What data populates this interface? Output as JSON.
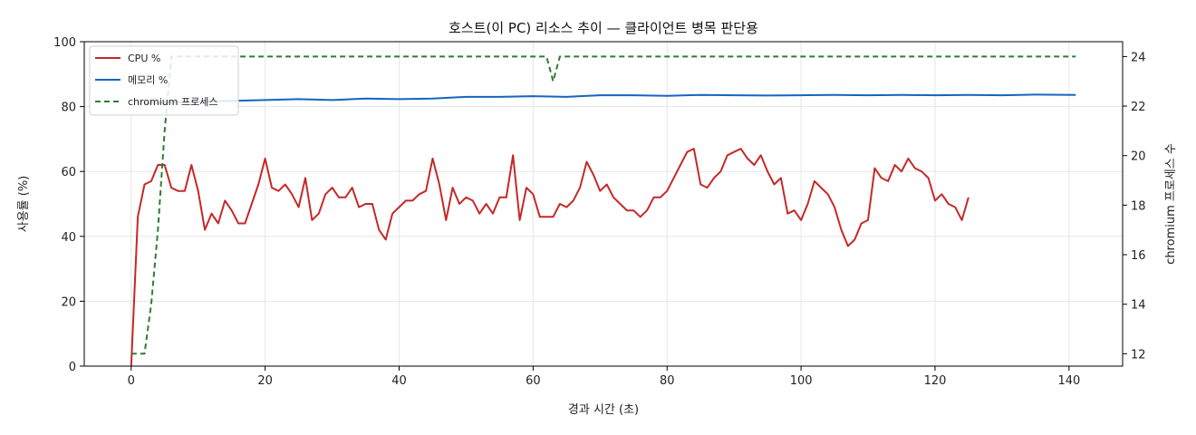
{
  "chart_data": {
    "type": "line",
    "title": "호스트(이 PC) 리소스 추이 — 클라이언트 병목 판단용",
    "xlabel": "경과 시간 (초)",
    "ylabel": "사용률 (%)",
    "y2label": "chromium 프로세스 수",
    "xlim": [
      -7,
      148
    ],
    "ylim": [
      0,
      100
    ],
    "y2lim": [
      11.5,
      24.6
    ],
    "xticks": [
      0,
      20,
      40,
      60,
      80,
      100,
      120,
      140
    ],
    "yticks": [
      0,
      20,
      40,
      60,
      80,
      100
    ],
    "y2ticks": [
      12,
      14,
      16,
      18,
      20,
      22,
      24
    ],
    "grid": true,
    "legend_position": "top-left",
    "series": [
      {
        "name": "CPU %",
        "axis": "left",
        "color": "#c62828",
        "dash": "solid",
        "points": [
          [
            0,
            0
          ],
          [
            1,
            46
          ],
          [
            2,
            56
          ],
          [
            3,
            57
          ],
          [
            4,
            62
          ],
          [
            5,
            62
          ],
          [
            6,
            55
          ],
          [
            7,
            54
          ],
          [
            8,
            54
          ],
          [
            9,
            62
          ],
          [
            10,
            54
          ],
          [
            11,
            42
          ],
          [
            12,
            47
          ],
          [
            13,
            44
          ],
          [
            14,
            51
          ],
          [
            15,
            48
          ],
          [
            16,
            44
          ],
          [
            17,
            44
          ],
          [
            18,
            50
          ],
          [
            19,
            56
          ],
          [
            20,
            64
          ],
          [
            21,
            55
          ],
          [
            22,
            54
          ],
          [
            23,
            56
          ],
          [
            24,
            53
          ],
          [
            25,
            49
          ],
          [
            26,
            58
          ],
          [
            27,
            45
          ],
          [
            28,
            47
          ],
          [
            29,
            53
          ],
          [
            30,
            55
          ],
          [
            31,
            52
          ],
          [
            32,
            52
          ],
          [
            33,
            55
          ],
          [
            34,
            49
          ],
          [
            35,
            50
          ],
          [
            36,
            50
          ],
          [
            37,
            42
          ],
          [
            38,
            39
          ],
          [
            39,
            47
          ],
          [
            40,
            49
          ],
          [
            41,
            51
          ],
          [
            42,
            51
          ],
          [
            43,
            53
          ],
          [
            44,
            54
          ],
          [
            45,
            64
          ],
          [
            46,
            56
          ],
          [
            47,
            45
          ],
          [
            48,
            55
          ],
          [
            49,
            50
          ],
          [
            50,
            52
          ],
          [
            51,
            51
          ],
          [
            52,
            47
          ],
          [
            53,
            50
          ],
          [
            54,
            47
          ],
          [
            55,
            52
          ],
          [
            56,
            52
          ],
          [
            57,
            65
          ],
          [
            58,
            45
          ],
          [
            59,
            55
          ],
          [
            60,
            53
          ],
          [
            61,
            46
          ],
          [
            62,
            46
          ],
          [
            63,
            46
          ],
          [
            64,
            50
          ],
          [
            65,
            49
          ],
          [
            66,
            51
          ],
          [
            67,
            55
          ],
          [
            68,
            63
          ],
          [
            69,
            59
          ],
          [
            70,
            54
          ],
          [
            71,
            56
          ],
          [
            72,
            52
          ],
          [
            73,
            50
          ],
          [
            74,
            48
          ],
          [
            75,
            48
          ],
          [
            76,
            46
          ],
          [
            77,
            48
          ],
          [
            78,
            52
          ],
          [
            79,
            52
          ],
          [
            80,
            54
          ],
          [
            81,
            58
          ],
          [
            82,
            62
          ],
          [
            83,
            66
          ],
          [
            84,
            67
          ],
          [
            85,
            56
          ],
          [
            86,
            55
          ],
          [
            87,
            58
          ],
          [
            88,
            60
          ],
          [
            89,
            65
          ],
          [
            90,
            66
          ],
          [
            91,
            67
          ],
          [
            92,
            64
          ],
          [
            93,
            62
          ],
          [
            94,
            65
          ],
          [
            95,
            60
          ],
          [
            96,
            56
          ],
          [
            97,
            58
          ],
          [
            98,
            47
          ],
          [
            99,
            48
          ],
          [
            100,
            45
          ],
          [
            101,
            50
          ],
          [
            102,
            57
          ],
          [
            103,
            55
          ],
          [
            104,
            53
          ],
          [
            105,
            49
          ],
          [
            106,
            42
          ],
          [
            107,
            37
          ],
          [
            108,
            39
          ],
          [
            109,
            44
          ],
          [
            110,
            45
          ],
          [
            111,
            61
          ],
          [
            112,
            58
          ],
          [
            113,
            57
          ],
          [
            114,
            62
          ],
          [
            115,
            60
          ],
          [
            116,
            64
          ],
          [
            117,
            61
          ],
          [
            118,
            60
          ],
          [
            119,
            58
          ],
          [
            120,
            51
          ],
          [
            121,
            53
          ],
          [
            122,
            50
          ],
          [
            123,
            49
          ],
          [
            124,
            45
          ],
          [
            125,
            52
          ]
        ]
      },
      {
        "name": "메모리 %",
        "axis": "left",
        "color": "#1565c0",
        "dash": "solid",
        "points": [
          [
            2,
            81
          ],
          [
            10,
            81.5
          ],
          [
            20,
            82
          ],
          [
            25,
            82.3
          ],
          [
            30,
            82
          ],
          [
            35,
            82.5
          ],
          [
            40,
            82.3
          ],
          [
            45,
            82.5
          ],
          [
            50,
            83
          ],
          [
            55,
            83
          ],
          [
            60,
            83.2
          ],
          [
            65,
            83
          ],
          [
            70,
            83.5
          ],
          [
            75,
            83.5
          ],
          [
            80,
            83.3
          ],
          [
            85,
            83.6
          ],
          [
            90,
            83.5
          ],
          [
            95,
            83.4
          ],
          [
            100,
            83.5
          ],
          [
            105,
            83.6
          ],
          [
            110,
            83.5
          ],
          [
            115,
            83.6
          ],
          [
            120,
            83.5
          ],
          [
            125,
            83.6
          ],
          [
            130,
            83.5
          ],
          [
            135,
            83.7
          ],
          [
            141,
            83.6
          ]
        ]
      },
      {
        "name": "chromium 프로세스",
        "axis": "right",
        "color": "#2e7d32",
        "dash": "dashed",
        "points": [
          [
            0,
            12
          ],
          [
            2,
            12
          ],
          [
            3,
            14
          ],
          [
            4,
            17
          ],
          [
            5,
            21
          ],
          [
            6,
            24
          ],
          [
            62,
            24
          ],
          [
            63,
            23
          ],
          [
            64,
            24
          ],
          [
            141,
            24
          ]
        ]
      }
    ]
  }
}
